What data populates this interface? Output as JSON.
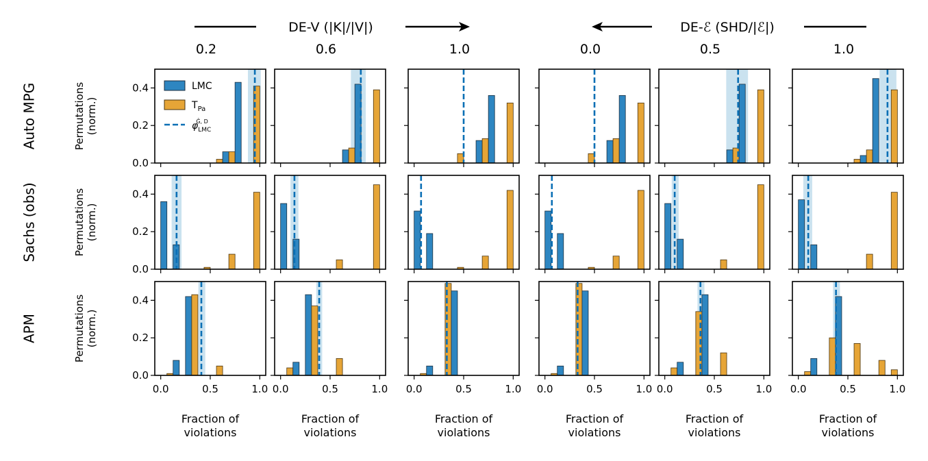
{
  "figure": {
    "header_left": {
      "text": "DE-V (|K|/|V|)",
      "arrow": "right"
    },
    "header_right": {
      "text": "DE-ℰ (SHD/|ℰ|)",
      "arrow": "left"
    },
    "column_titles": [
      "0.2",
      "0.6",
      "1.0",
      "0.0",
      "0.5",
      "1.0"
    ],
    "row_labels": [
      "Auto MPG",
      "Sachs (obs)",
      "APM"
    ],
    "ylabel_lines": [
      "Permutations",
      "(norm.)"
    ],
    "xlabel_lines": [
      "Fraction of",
      "violations"
    ],
    "x_ticks": [
      "0.0",
      "0.5",
      "1.0"
    ],
    "y_ticks": [
      "0.0",
      "0.2",
      "0.4"
    ],
    "legend": {
      "lmc": "LMC",
      "tpa": "T",
      "tpa_sub": "Pa",
      "phi": "φ",
      "phi_sub": "LMC",
      "phi_sup": "Ĝ, D"
    }
  },
  "colors": {
    "lmc": "#2e86c1",
    "tpa": "#e6a537",
    "phi_line": "#0a6fb5",
    "band": "#9ecae1"
  },
  "chart_data": {
    "type": "bar",
    "ylim": [
      0,
      0.5
    ],
    "xlim": [
      -0.06,
      1.06
    ],
    "bin_centers": [
      0.0625,
      0.1875,
      0.3125,
      0.4375,
      0.5625,
      0.6875,
      0.8125,
      0.9375
    ],
    "series_names": [
      "LMC",
      "TPa"
    ],
    "panels": [
      {
        "row": 0,
        "col": 0,
        "lmc": [
          0.0,
          0.0,
          0.0,
          0.0,
          0.0,
          0.06,
          0.43,
          0.0
        ],
        "tpa": [
          0.0,
          0.0,
          0.0,
          0.0,
          0.02,
          0.06,
          0.0,
          0.41
        ],
        "phi": 0.95,
        "band": [
          0.88,
          1.01
        ]
      },
      {
        "row": 0,
        "col": 1,
        "lmc": [
          0.0,
          0.0,
          0.0,
          0.0,
          0.0,
          0.07,
          0.42,
          0.0
        ],
        "tpa": [
          0.0,
          0.0,
          0.0,
          0.0,
          0.0,
          0.08,
          0.0,
          0.39
        ],
        "phi": 0.81,
        "band": [
          0.71,
          0.86
        ]
      },
      {
        "row": 0,
        "col": 2,
        "lmc": [
          0.0,
          0.0,
          0.0,
          0.0,
          0.0,
          0.12,
          0.36,
          0.0
        ],
        "tpa": [
          0.0,
          0.0,
          0.0,
          0.05,
          0.0,
          0.13,
          0.0,
          0.32
        ],
        "phi": 0.5,
        "band": null
      },
      {
        "row": 0,
        "col": 3,
        "lmc": [
          0.0,
          0.0,
          0.0,
          0.0,
          0.0,
          0.12,
          0.36,
          0.0
        ],
        "tpa": [
          0.0,
          0.0,
          0.0,
          0.05,
          0.0,
          0.13,
          0.0,
          0.32
        ],
        "phi": 0.5,
        "band": null
      },
      {
        "row": 0,
        "col": 4,
        "lmc": [
          0.0,
          0.0,
          0.0,
          0.0,
          0.0,
          0.07,
          0.42,
          0.0
        ],
        "tpa": [
          0.0,
          0.0,
          0.0,
          0.0,
          0.0,
          0.08,
          0.0,
          0.39
        ],
        "phi": 0.74,
        "band": [
          0.62,
          0.84
        ]
      },
      {
        "row": 0,
        "col": 5,
        "lmc": [
          0.0,
          0.0,
          0.0,
          0.0,
          0.0,
          0.04,
          0.45,
          0.0
        ],
        "tpa": [
          0.0,
          0.0,
          0.0,
          0.0,
          0.02,
          0.07,
          0.0,
          0.39
        ],
        "phi": 0.9,
        "band": [
          0.82,
          0.99
        ]
      },
      {
        "row": 1,
        "col": 0,
        "lmc": [
          0.36,
          0.13,
          0.0,
          0.0,
          0.0,
          0.0,
          0.0,
          0.0
        ],
        "tpa": [
          0.0,
          0.0,
          0.0,
          0.01,
          0.0,
          0.08,
          0.0,
          0.41
        ],
        "phi": 0.16,
        "band": [
          0.11,
          0.21
        ]
      },
      {
        "row": 1,
        "col": 1,
        "lmc": [
          0.35,
          0.16,
          0.0,
          0.0,
          0.0,
          0.0,
          0.0,
          0.0
        ],
        "tpa": [
          0.0,
          0.0,
          0.0,
          0.0,
          0.05,
          0.0,
          0.0,
          0.45
        ],
        "phi": 0.14,
        "band": [
          0.1,
          0.18
        ]
      },
      {
        "row": 1,
        "col": 2,
        "lmc": [
          0.31,
          0.19,
          0.0,
          0.0,
          0.0,
          0.0,
          0.0,
          0.0
        ],
        "tpa": [
          0.0,
          0.0,
          0.0,
          0.01,
          0.0,
          0.07,
          0.0,
          0.42
        ],
        "phi": 0.07,
        "band": null
      },
      {
        "row": 1,
        "col": 3,
        "lmc": [
          0.31,
          0.19,
          0.0,
          0.0,
          0.0,
          0.0,
          0.0,
          0.0
        ],
        "tpa": [
          0.0,
          0.0,
          0.0,
          0.01,
          0.0,
          0.07,
          0.0,
          0.42
        ],
        "phi": 0.07,
        "band": null
      },
      {
        "row": 1,
        "col": 4,
        "lmc": [
          0.35,
          0.16,
          0.0,
          0.0,
          0.0,
          0.0,
          0.0,
          0.0
        ],
        "tpa": [
          0.0,
          0.0,
          0.0,
          0.0,
          0.05,
          0.0,
          0.0,
          0.45
        ],
        "phi": 0.1,
        "band": [
          0.07,
          0.14
        ]
      },
      {
        "row": 1,
        "col": 5,
        "lmc": [
          0.37,
          0.13,
          0.0,
          0.0,
          0.0,
          0.0,
          0.0,
          0.0
        ],
        "tpa": [
          0.0,
          0.0,
          0.0,
          0.0,
          0.0,
          0.08,
          0.0,
          0.41
        ],
        "phi": 0.1,
        "band": [
          0.05,
          0.14
        ]
      },
      {
        "row": 2,
        "col": 0,
        "lmc": [
          0.0,
          0.08,
          0.42,
          0.0,
          0.0,
          0.0,
          0.0,
          0.0
        ],
        "tpa": [
          0.01,
          0.0,
          0.43,
          0.0,
          0.05,
          0.0,
          0.0,
          0.0
        ],
        "phi": 0.41,
        "band": [
          0.38,
          0.45
        ]
      },
      {
        "row": 2,
        "col": 1,
        "lmc": [
          0.0,
          0.07,
          0.43,
          0.0,
          0.0,
          0.0,
          0.0,
          0.0
        ],
        "tpa": [
          0.04,
          0.0,
          0.37,
          0.0,
          0.09,
          0.0,
          0.0,
          0.0
        ],
        "phi": 0.39,
        "band": [
          0.36,
          0.42
        ]
      },
      {
        "row": 2,
        "col": 2,
        "lmc": [
          0.0,
          0.05,
          0.0,
          0.45,
          0.0,
          0.0,
          0.0,
          0.0
        ],
        "tpa": [
          0.01,
          0.0,
          0.49,
          0.0,
          0.0,
          0.0,
          0.0,
          0.0
        ],
        "phi": 0.33,
        "band": null
      },
      {
        "row": 2,
        "col": 3,
        "lmc": [
          0.0,
          0.05,
          0.0,
          0.45,
          0.0,
          0.0,
          0.0,
          0.0
        ],
        "tpa": [
          0.01,
          0.0,
          0.49,
          0.0,
          0.0,
          0.0,
          0.0,
          0.0
        ],
        "phi": 0.33,
        "band": null
      },
      {
        "row": 2,
        "col": 4,
        "lmc": [
          0.0,
          0.07,
          0.0,
          0.43,
          0.0,
          0.0,
          0.0,
          0.0
        ],
        "tpa": [
          0.04,
          0.0,
          0.34,
          0.0,
          0.12,
          0.0,
          0.0,
          0.0
        ],
        "phi": 0.36,
        "band": [
          0.33,
          0.4
        ]
      },
      {
        "row": 2,
        "col": 5,
        "lmc": [
          0.0,
          0.09,
          0.0,
          0.42,
          0.0,
          0.0,
          0.0,
          0.0
        ],
        "tpa": [
          0.02,
          0.0,
          0.2,
          0.0,
          0.17,
          0.0,
          0.08,
          0.03
        ],
        "phi": 0.38,
        "band": [
          0.35,
          0.42
        ]
      }
    ]
  }
}
